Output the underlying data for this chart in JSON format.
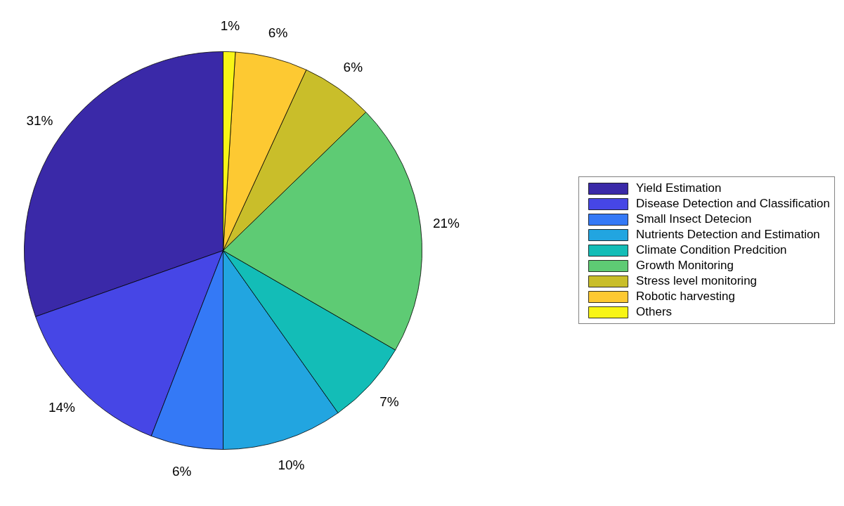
{
  "chart_data": {
    "type": "pie",
    "categories": [
      "Yield Estimation",
      "Disease Detection and Classification",
      "Small Insect Detecion",
      "Nutrients Detection and Estimation",
      "Climate Condition Predcition",
      "Growth Monitoring",
      "Stress level monitoring",
      "Robotic harvesting",
      "Others"
    ],
    "values": [
      31,
      14,
      6,
      10,
      7,
      21,
      6,
      6,
      1
    ],
    "value_labels": [
      "31%",
      "14%",
      "6%",
      "10%",
      "7%",
      "21%",
      "6%",
      "6%",
      "1%"
    ],
    "colors": [
      "#3a29a8",
      "#4646e6",
      "#3479f6",
      "#22a5e0",
      "#13bdb7",
      "#5ecb74",
      "#c9be2a",
      "#fdc932",
      "#f8f516"
    ],
    "legend": "right"
  }
}
